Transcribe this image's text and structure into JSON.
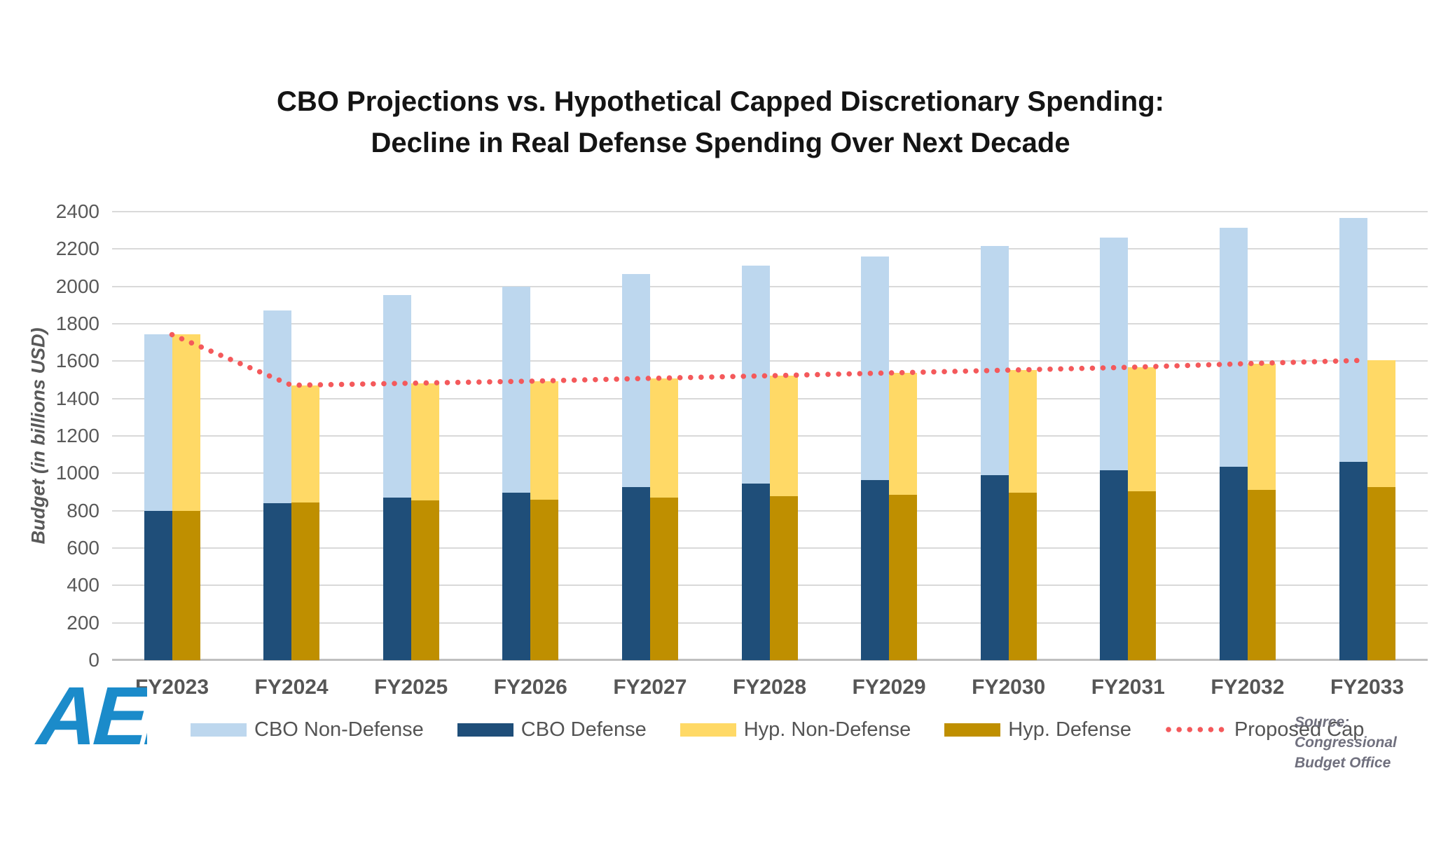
{
  "title": {
    "line1": "CBO Projections vs. Hypothetical Capped Discretionary Spending:",
    "line2": "Decline in Real Defense Spending Over Next Decade"
  },
  "y_axis_label": "Budget (in billions USD)",
  "source_note": {
    "line1": "Source: Congressional",
    "line2": "Budget Office"
  },
  "logo": {
    "text": "AEI",
    "color": "#1b8bca"
  },
  "colors": {
    "cbo_non_defense": "#BDD7EE",
    "cbo_defense": "#1F4E79",
    "hyp_non_defense": "#FFD966",
    "hyp_defense": "#BF8F00",
    "proposed_cap": "#F4595B",
    "gridline": "#D9D9D9",
    "axis_line": "#BFBFBF",
    "tick_text": "#595959",
    "title_text": "#141414"
  },
  "legend": {
    "items": [
      {
        "label": "CBO Non-Defense",
        "color": "#BDD7EE",
        "style": "swatch"
      },
      {
        "label": "CBO Defense",
        "color": "#1F4E79",
        "style": "swatch"
      },
      {
        "label": "Hyp. Non-Defense",
        "color": "#FFD966",
        "style": "swatch"
      },
      {
        "label": "Hyp. Defense",
        "color": "#BF8F00",
        "style": "swatch"
      },
      {
        "label": "Proposed Cap",
        "color": "#F4595B",
        "style": "dotted-line"
      }
    ]
  },
  "chart_data": {
    "type": "bar",
    "stacked": true,
    "title": "CBO Projections vs. Hypothetical Capped Discretionary Spending: Decline in Real Defense Spending Over Next Decade",
    "xlabel": "",
    "ylabel": "Budget (in billions USD)",
    "ylim": [
      0,
      2400
    ],
    "ytick_step": 200,
    "y_ticks": [
      0,
      200,
      400,
      600,
      800,
      1000,
      1200,
      1400,
      1600,
      1800,
      2000,
      2200,
      2400
    ],
    "grid": true,
    "legend_position": "bottom",
    "categories": [
      "FY2023",
      "FY2024",
      "FY2025",
      "FY2026",
      "FY2027",
      "FY2028",
      "FY2029",
      "FY2030",
      "FY2031",
      "FY2032",
      "FY2033"
    ],
    "groups": [
      {
        "name": "CBO",
        "segments": [
          {
            "name": "CBO Defense",
            "color": "#1F4E79",
            "values": [
              800,
              840,
              870,
              895,
              925,
              945,
              965,
              990,
              1015,
              1035,
              1060
            ]
          },
          {
            "name": "CBO Non-Defense",
            "color": "#BDD7EE",
            "values": [
              945,
              1030,
              1085,
              1105,
              1140,
              1165,
              1195,
              1225,
              1245,
              1280,
              1305
            ]
          }
        ],
        "totals": [
          1745,
          1870,
          1955,
          2000,
          2065,
          2110,
          2160,
          2215,
          2260,
          2315,
          2365
        ]
      },
      {
        "name": "Hypothetical",
        "segments": [
          {
            "name": "Hyp. Defense",
            "color": "#BF8F00",
            "values": [
              800,
              845,
              855,
              860,
              870,
              878,
              885,
              895,
              905,
              912,
              925
            ]
          },
          {
            "name": "Hyp. Non-Defense",
            "color": "#FFD966",
            "values": [
              942,
              626,
              627,
              633,
              638,
              644,
              652,
              657,
              662,
              675,
              680
            ]
          }
        ],
        "totals": [
          1742,
          1471,
          1482,
          1493,
          1508,
          1522,
          1537,
          1552,
          1567,
          1587,
          1605
        ]
      }
    ],
    "line_series": {
      "name": "Proposed Cap",
      "style": "dotted",
      "color": "#F4595B",
      "values": [
        1742,
        1471,
        1482,
        1493,
        1508,
        1522,
        1537,
        1552,
        1567,
        1587,
        1605
      ]
    }
  }
}
